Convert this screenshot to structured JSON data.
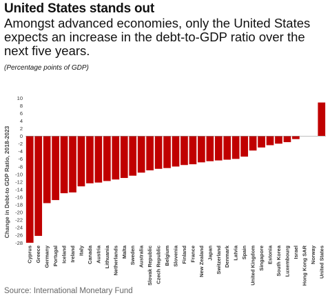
{
  "header": {
    "title": "United States stands out",
    "subtitle": "Amongst advanced economies, only the United States expects an increase in the debt-to-GDP ratio over the next five years.",
    "unit_note": "(Percentage points of GDP)"
  },
  "footer": {
    "source": "Source: International Monetary Fund"
  },
  "colors": {
    "bar": "#c00000"
  },
  "chart_data": {
    "type": "bar",
    "ylabel": "Change in Debt-to GDP Ratio, 2018-2023",
    "ylim": [
      -28,
      10
    ],
    "yticks": [
      10,
      8,
      6,
      4,
      2,
      0,
      -2,
      -4,
      -6,
      -8,
      -10,
      -12,
      -14,
      -16,
      -18,
      -20,
      -22,
      -24,
      -26,
      -28
    ],
    "grid": false,
    "categories": [
      "Cyprus",
      "Greece",
      "Germany",
      "Portugal",
      "Iceland",
      "Ireland",
      "Italy",
      "Canada",
      "Austria",
      "Lithuania",
      "Netherlands",
      "Malta",
      "Sweden",
      "Australia",
      "Slovak Republic",
      "Czech Republic",
      "Belgium",
      "Slovenia",
      "Finland",
      "France",
      "New Zealand",
      "Japan",
      "Switzerland",
      "Denmark",
      "Latvia",
      "Spain",
      "United Kingdom",
      "Singapore",
      "Estonia",
      "South Korea",
      "Luxembourg",
      "Israel",
      "Hong Kong SAR",
      "Norway",
      "United States"
    ],
    "values": [
      -28.0,
      -26.2,
      -17.6,
      -16.8,
      -15.0,
      -14.8,
      -13.2,
      -12.4,
      -12.2,
      -11.8,
      -11.4,
      -11.0,
      -10.4,
      -9.6,
      -9.0,
      -8.6,
      -8.4,
      -8.0,
      -7.6,
      -7.4,
      -6.9,
      -6.6,
      -6.4,
      -6.2,
      -6.0,
      -5.4,
      -3.8,
      -3.0,
      -2.4,
      -2.0,
      -1.6,
      -0.8,
      0,
      0,
      8.8
    ]
  }
}
